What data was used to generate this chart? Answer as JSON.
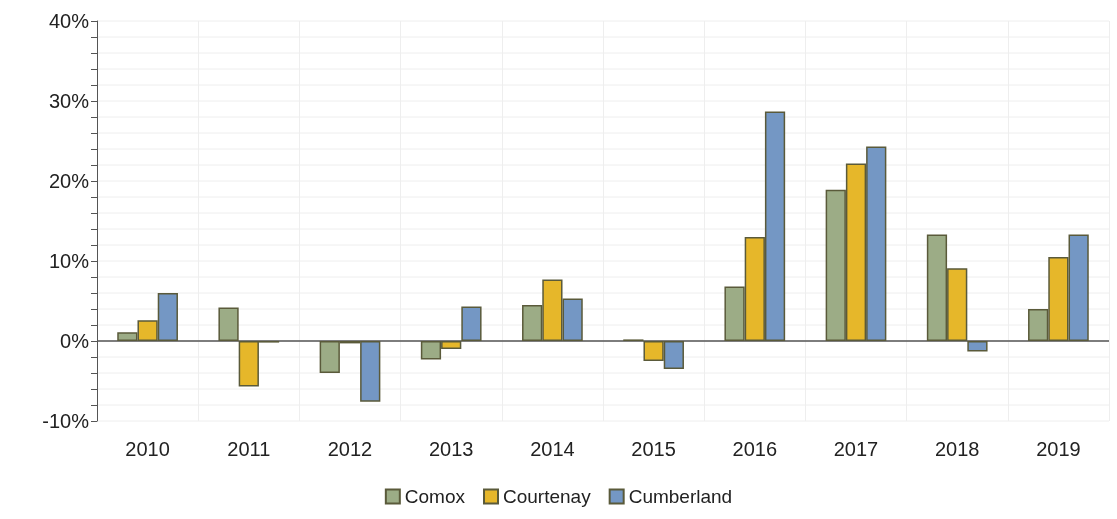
{
  "chart_data": {
    "type": "bar",
    "categories": [
      "2010",
      "2011",
      "2012",
      "2013",
      "2014",
      "2015",
      "2016",
      "2017",
      "2018",
      "2019"
    ],
    "series": [
      {
        "name": "Comox",
        "color": "#9cac86",
        "values": [
          1.1,
          4.2,
          -4.0,
          -2.3,
          4.5,
          0.2,
          6.8,
          18.9,
          13.3,
          4.0
        ]
      },
      {
        "name": "Courtenay",
        "color": "#e6b72a",
        "values": [
          2.6,
          -5.7,
          -0.3,
          -1.0,
          7.7,
          -2.5,
          13.0,
          22.2,
          9.1,
          10.5
        ]
      },
      {
        "name": "Cumberland",
        "color": "#7497c4",
        "values": [
          6.0,
          -0.2,
          -7.6,
          4.3,
          5.3,
          -3.5,
          28.7,
          24.3,
          -1.3,
          13.3
        ]
      }
    ],
    "ylim": [
      -10,
      40
    ],
    "yticks": [
      {
        "value": -10,
        "label": "-10%"
      },
      {
        "value": -8,
        "label": null
      },
      {
        "value": -6,
        "label": null
      },
      {
        "value": -4,
        "label": null
      },
      {
        "value": -2,
        "label": null
      },
      {
        "value": 0,
        "label": "0%"
      },
      {
        "value": 2,
        "label": null
      },
      {
        "value": 4,
        "label": null
      },
      {
        "value": 6,
        "label": null
      },
      {
        "value": 8,
        "label": null
      },
      {
        "value": 10,
        "label": "10%"
      },
      {
        "value": 12,
        "label": null
      },
      {
        "value": 14,
        "label": null
      },
      {
        "value": 16,
        "label": null
      },
      {
        "value": 18,
        "label": null
      },
      {
        "value": 20,
        "label": "20%"
      },
      {
        "value": 22,
        "label": null
      },
      {
        "value": 24,
        "label": null
      },
      {
        "value": 26,
        "label": null
      },
      {
        "value": 28,
        "label": null
      },
      {
        "value": 30,
        "label": "30%"
      },
      {
        "value": 32,
        "label": null
      },
      {
        "value": 34,
        "label": null
      },
      {
        "value": 36,
        "label": null
      },
      {
        "value": 38,
        "label": null
      },
      {
        "value": 40,
        "label": "40%"
      }
    ],
    "grid": true,
    "legend": "bottom"
  }
}
